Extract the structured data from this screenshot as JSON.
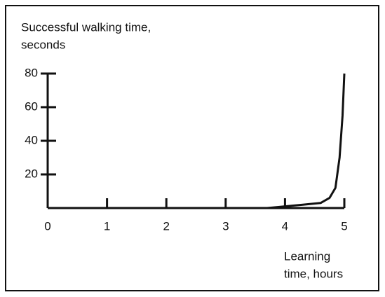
{
  "chart_data": {
    "type": "line",
    "ylabel_lines": [
      "Successful walking time,",
      "seconds"
    ],
    "xlabel_lines": [
      "Learning",
      "time, hours"
    ],
    "x": [
      0,
      1,
      2,
      3,
      3.7,
      4,
      4.3,
      4.6,
      4.75,
      4.85,
      4.92,
      4.97,
      5
    ],
    "values": [
      0,
      0,
      0,
      0,
      0,
      1,
      2,
      3,
      6,
      12,
      30,
      55,
      80
    ],
    "color": "#111111",
    "xlim": [
      0,
      5
    ],
    "xticks": [
      0,
      1,
      2,
      3,
      4,
      5
    ],
    "ylim": [
      0,
      80
    ],
    "yticks": [
      20,
      40,
      60,
      80
    ],
    "grid": false
  }
}
